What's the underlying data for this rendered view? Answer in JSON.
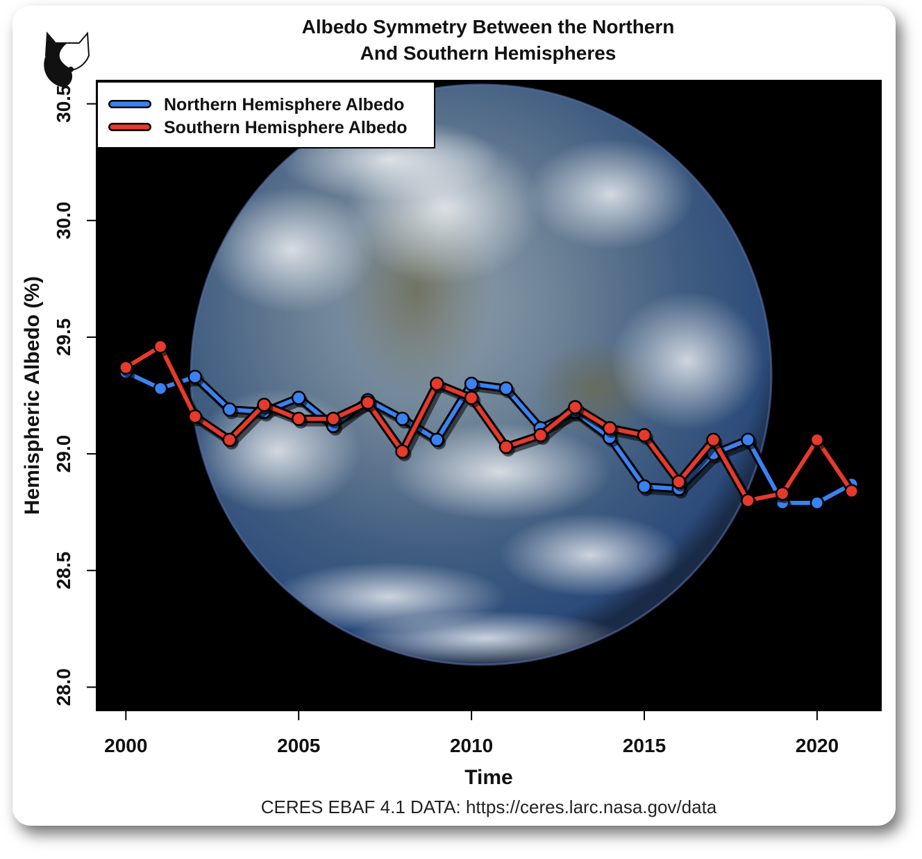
{
  "chart_data": {
    "type": "line",
    "title": [
      "Albedo Symmetry Between the Northern",
      "And Southern Hemispheres"
    ],
    "xlabel": "Time",
    "ylabel": "Hemispheric Albedo (%)",
    "source": "CERES EBAF 4.1 DATA: https://ceres.larc.nasa.gov/data",
    "xlim": [
      1999.15,
      2021.85
    ],
    "ylim": [
      27.9,
      30.6
    ],
    "xticks": [
      2000,
      2005,
      2010,
      2015,
      2020
    ],
    "xtick_labels": [
      "2000",
      "2005",
      "2010",
      "2015",
      "2020"
    ],
    "yticks": [
      28.0,
      28.5,
      29.0,
      29.5,
      30.0,
      30.5
    ],
    "ytick_labels": [
      "28.0",
      "28.5",
      "29.0",
      "29.5",
      "30.0",
      "30.5"
    ],
    "legend_position": "top-left",
    "x": [
      2000,
      2001,
      2002,
      2003,
      2004,
      2005,
      2006,
      2007,
      2008,
      2009,
      2010,
      2011,
      2012,
      2013,
      2014,
      2015,
      2016,
      2017,
      2018,
      2019,
      2020,
      2021
    ],
    "series": [
      {
        "name": "Northern Hemisphere Albedo",
        "color": "#3b82f0",
        "values": [
          29.35,
          29.28,
          29.33,
          29.19,
          29.18,
          29.24,
          29.12,
          29.23,
          29.15,
          29.06,
          29.3,
          29.28,
          29.11,
          29.18,
          29.07,
          28.86,
          28.85,
          29.0,
          29.06,
          28.79,
          28.79,
          28.87
        ]
      },
      {
        "name": "Southern Hemisphere Albedo",
        "color": "#e53a2c",
        "values": [
          29.37,
          29.46,
          29.16,
          29.06,
          29.21,
          29.15,
          29.15,
          29.22,
          29.01,
          29.3,
          29.24,
          29.03,
          29.08,
          29.2,
          29.11,
          29.08,
          28.88,
          29.06,
          28.8,
          28.83,
          29.06,
          28.84
        ]
      }
    ],
    "background": "photo of Earth (blue marble) behind plot area",
    "logo": "yin-yang cat logo"
  }
}
